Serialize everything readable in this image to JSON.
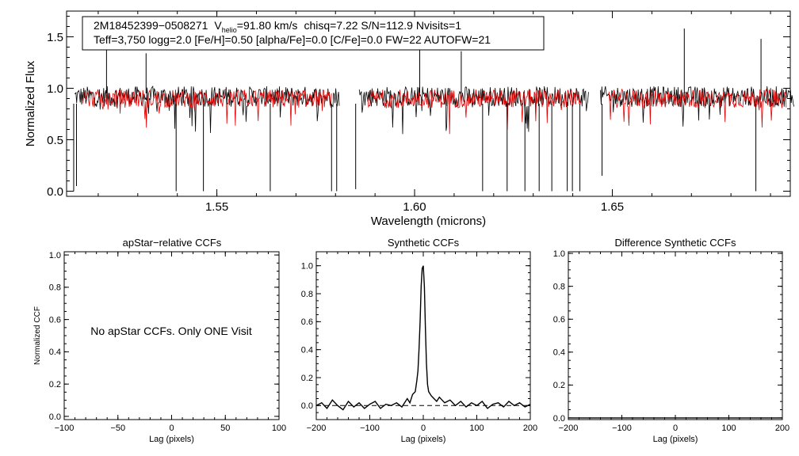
{
  "colors": {
    "observed": "#000000",
    "model": "#e00000",
    "axis": "#000000",
    "background": "#ffffff"
  },
  "info": {
    "line1": {
      "star": "2M18452399−0508271",
      "v_label": "V",
      "v_sub": "helio",
      "v_value": "=91.80 km/s",
      "stats": "chisq=7.22  S/N=112.9  Nvisits=1"
    },
    "line2": "Teff=3,750 logg=2.0 [Fe/H]=0.50 [alpha/Fe]=0.0 [C/Fe]=0.0 FW=22 AUTOFW=21"
  },
  "panel_titles": {
    "apstar": "apStar−relative CCFs",
    "synthetic": "Synthetic CCFs",
    "difference": "Difference Synthetic CCFs"
  },
  "no_data_message": "No apStar CCFs.  Only ONE Visit",
  "chart_data": [
    {
      "type": "line",
      "id": "spectrum",
      "xlabel": "Wavelength (microns)",
      "ylabel": "Normalized Flux",
      "xlim": [
        1.512,
        1.695
      ],
      "ylim": [
        -0.05,
        1.75
      ],
      "x_ticks": [
        1.55,
        1.6,
        1.65
      ],
      "x_tick_labels": [
        "1.55",
        "1.60",
        "1.65"
      ],
      "y_ticks": [
        0.0,
        0.5,
        1.0,
        1.5
      ],
      "y_tick_labels": [
        "0.0",
        "0.5",
        "1.0",
        "1.5"
      ],
      "chips": [
        [
          1.514,
          1.581
        ],
        [
          1.586,
          1.644
        ],
        [
          1.647,
          1.696
        ]
      ],
      "series": [
        {
          "name": "observed",
          "color": "#000000",
          "continuum": 0.92,
          "noise": 0.1
        },
        {
          "name": "model",
          "color": "#e00000",
          "continuum": 0.9,
          "noise": 0.09
        }
      ],
      "emission_spikes": [
        [
          1.5221,
          1.45
        ],
        [
          1.5321,
          1.34
        ],
        [
          1.6013,
          1.38
        ],
        [
          1.6118,
          1.36
        ],
        [
          1.6682,
          1.58
        ],
        [
          1.6876,
          1.48
        ]
      ],
      "absorption_lines": [
        [
          1.5138,
          0.0
        ],
        [
          1.5145,
          0.05
        ],
        [
          1.5397,
          0.0
        ],
        [
          1.5466,
          0.0
        ],
        [
          1.5635,
          0.0
        ],
        [
          1.579,
          0.0
        ],
        [
          1.5803,
          0.0
        ],
        [
          1.5851,
          0.02
        ],
        [
          1.6172,
          0.0
        ],
        [
          1.6234,
          0.0
        ],
        [
          1.6279,
          0.0
        ],
        [
          1.6315,
          0.0
        ],
        [
          1.6347,
          0.0
        ],
        [
          1.6386,
          0.0
        ],
        [
          1.6399,
          0.0
        ],
        [
          1.6418,
          0.0
        ],
        [
          1.6474,
          0.15
        ],
        [
          1.6863,
          0.0
        ]
      ]
    },
    {
      "type": "line",
      "id": "apstar-ccf",
      "title": "apStar−relative CCFs",
      "xlabel": "Lag (pixels)",
      "ylabel": "Normalized CCF",
      "xlim": [
        -100,
        100
      ],
      "ylim": [
        -0.02,
        1.02
      ],
      "x_ticks": [
        -100,
        -50,
        0,
        50,
        100
      ],
      "x_tick_labels": [
        "−100",
        "−50",
        "0",
        "50",
        "100"
      ],
      "y_ticks": [
        0.0,
        0.2,
        0.4,
        0.6,
        0.8,
        1.0
      ],
      "y_tick_labels": [
        "0.0",
        "0.2",
        "0.4",
        "0.6",
        "0.8",
        "1.0"
      ],
      "series": []
    },
    {
      "type": "line",
      "id": "synthetic-ccf",
      "title": "Synthetic CCFs",
      "xlabel": "Lag (pixels)",
      "ylabel": "",
      "xlim": [
        -200,
        200
      ],
      "ylim": [
        -0.1,
        1.1
      ],
      "x_ticks": [
        -200,
        -100,
        0,
        100,
        200
      ],
      "x_tick_labels": [
        "−200",
        "−100",
        "0",
        "100",
        "200"
      ],
      "y_ticks": [
        0.0,
        0.2,
        0.4,
        0.6,
        0.8,
        1.0
      ],
      "y_tick_labels": [
        "0.0",
        "0.2",
        "0.4",
        "0.6",
        "0.8",
        "1.0"
      ],
      "series": [
        {
          "name": "ccf",
          "color": "#000000",
          "dashed": false,
          "x": [
            -200,
            -190,
            -180,
            -170,
            -160,
            -150,
            -140,
            -130,
            -120,
            -110,
            -100,
            -90,
            -80,
            -70,
            -60,
            -50,
            -40,
            -30,
            -25,
            -20,
            -15,
            -12,
            -10,
            -8,
            -6,
            -4,
            -2,
            0,
            2,
            4,
            6,
            8,
            10,
            15,
            20,
            25,
            30,
            40,
            50,
            60,
            70,
            80,
            90,
            100,
            110,
            120,
            130,
            140,
            150,
            160,
            170,
            180,
            190,
            200
          ],
          "y": [
            0.0,
            0.02,
            -0.02,
            0.04,
            0.0,
            -0.03,
            0.03,
            -0.01,
            0.02,
            -0.02,
            0.01,
            0.03,
            -0.02,
            0.01,
            0.0,
            0.02,
            -0.01,
            0.05,
            0.02,
            0.08,
            0.1,
            0.18,
            0.25,
            0.4,
            0.6,
            0.85,
            0.98,
            1.0,
            0.85,
            0.55,
            0.3,
            0.15,
            0.1,
            0.07,
            0.05,
            0.03,
            0.06,
            0.02,
            0.04,
            0.0,
            0.03,
            -0.01,
            0.02,
            0.0,
            0.03,
            -0.02,
            0.01,
            0.02,
            -0.01,
            0.03,
            0.0,
            0.02,
            -0.01,
            0.01
          ]
        },
        {
          "name": "zero",
          "color": "#000000",
          "dashed": true,
          "x": [
            -200,
            200
          ],
          "y": [
            0.0,
            0.0
          ]
        }
      ]
    },
    {
      "type": "line",
      "id": "difference-ccf",
      "title": "Difference Synthetic CCFs",
      "xlabel": "Lag (pixels)",
      "ylabel": "",
      "xlim": [
        -200,
        200
      ],
      "ylim": [
        -0.01,
        1.01
      ],
      "x_ticks": [
        -200,
        -100,
        0,
        100,
        200
      ],
      "x_tick_labels": [
        "−200",
        "−100",
        "0",
        "100",
        "200"
      ],
      "y_ticks": [
        0.0,
        0.2,
        0.4,
        0.6,
        0.8,
        1.0
      ],
      "y_tick_labels": [
        "0.0",
        "0.2",
        "0.4",
        "0.6",
        "0.8",
        "1.0"
      ],
      "series": [
        {
          "name": "diff",
          "color": "#000000",
          "dashed": false,
          "x": [
            -200,
            200
          ],
          "y": [
            0.0,
            0.0
          ]
        }
      ]
    }
  ]
}
